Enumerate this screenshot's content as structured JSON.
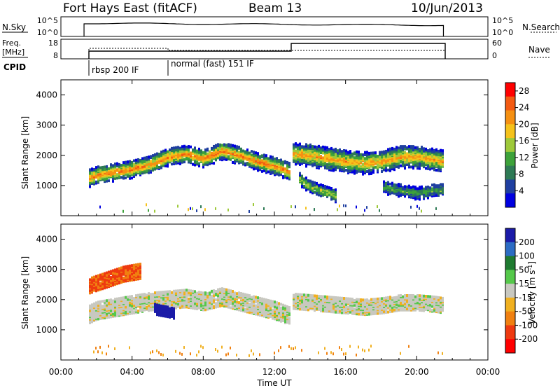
{
  "header": {
    "station": "Fort Hays East (fitACF)",
    "beam": "Beam 13",
    "date": "10/Jun/2013"
  },
  "panels": {
    "nsky": {
      "left_label": "N.Sky",
      "left_ticks": [
        "10^5",
        "10^0"
      ],
      "right_ticks": [
        "10^5",
        "10^0"
      ],
      "right_label": "N.Search"
    },
    "freq": {
      "left_label_1": "Freq.",
      "left_label_2": "[MHz]",
      "left_ticks": [
        "18",
        "8"
      ],
      "right_ticks": [
        "60",
        "0"
      ],
      "right_label": "Nave"
    },
    "cpid": {
      "label": "CPID",
      "modes": [
        "rbsp 200 IF",
        "normal (fast) 151 IF"
      ]
    }
  },
  "x_axis": {
    "label": "Time UT",
    "ticks": [
      "00:00",
      "04:00",
      "08:00",
      "12:00",
      "16:00",
      "20:00",
      "00:00"
    ]
  },
  "colors": {
    "power_scale": [
      "#0000e0",
      "#1f3fa0",
      "#2e7a55",
      "#3da23a",
      "#9ec93a",
      "#f5c21b",
      "#f59012",
      "#f35a12",
      "#ff0000"
    ],
    "velocity_scale": [
      "#1b1ba8",
      "#2c6cc4",
      "#1e7a30",
      "#55c84a",
      "#c8c8c0",
      "#f0b020",
      "#f08010",
      "#ee3a10",
      "#ff0000"
    ]
  },
  "chart_data": [
    {
      "type": "heatmap",
      "name": "power",
      "ylabel": "Slant Range [km]",
      "ylim": [
        0,
        4500
      ],
      "y_ticks": [
        1000,
        2000,
        3000,
        4000
      ],
      "xlim_hours": [
        0,
        24
      ],
      "colorbar": {
        "label": "Power [dB]",
        "ticks": [
          4,
          8,
          12,
          16,
          20,
          24,
          28
        ],
        "range": [
          0,
          30
        ]
      },
      "bands": [
        {
          "t": [
            1.3,
            2,
            3,
            4,
            5,
            6,
            7,
            8,
            9,
            10,
            11,
            12,
            12.9
          ],
          "center": [
            1250,
            1400,
            1500,
            1600,
            1750,
            2000,
            2100,
            1950,
            2200,
            2050,
            1850,
            1700,
            1500
          ],
          "width": 300,
          "peak": 24
        },
        {
          "t": [
            13,
            14,
            15,
            16,
            17,
            18,
            19,
            20,
            21,
            21.5
          ],
          "center": [
            2100,
            2050,
            1950,
            1850,
            1800,
            1850,
            2000,
            2000,
            1900,
            1850
          ],
          "width": 380,
          "peak": 22
        },
        {
          "t": [
            13.3,
            14,
            15,
            15.5
          ],
          "center": [
            1300,
            1000,
            800,
            700
          ],
          "width": 220,
          "peak": 16
        },
        {
          "t": [
            18,
            19,
            20,
            21,
            21.5
          ],
          "center": [
            1000,
            900,
            800,
            900,
            900
          ],
          "width": 220,
          "peak": 12
        }
      ]
    },
    {
      "type": "heatmap",
      "name": "velocity",
      "ylabel": "Slant Range [km]",
      "ylim": [
        0,
        4500
      ],
      "y_ticks": [
        1000,
        2000,
        3000,
        4000
      ],
      "xlim_hours": [
        0,
        24
      ],
      "colorbar": {
        "label": "Velocity [m s^-1]",
        "ticks": [
          200,
          100,
          50,
          15,
          -15,
          -50,
          -100,
          -200
        ],
        "range": [
          -250,
          250
        ]
      },
      "bands": [
        {
          "t": [
            1.3,
            2,
            3,
            4,
            5,
            6,
            7,
            8,
            9,
            10,
            11,
            12,
            12.9
          ],
          "center": [
            1500,
            1700,
            1800,
            1900,
            2000,
            2050,
            2100,
            2000,
            2150,
            2000,
            1850,
            1700,
            1500
          ],
          "width": 600,
          "v": 0
        },
        {
          "t": [
            13,
            14,
            15,
            16,
            17,
            18,
            19,
            20,
            21,
            21.5
          ],
          "center": [
            2000,
            1950,
            1900,
            1850,
            1800,
            1850,
            1950,
            1950,
            1900,
            1850
          ],
          "width": 500,
          "v": 0
        },
        {
          "t": [
            5.2,
            5.5,
            6,
            6.3
          ],
          "center": [
            1750,
            1700,
            1650,
            1600
          ],
          "width": 350,
          "v": 200
        },
        {
          "t": [
            1.5,
            2.5,
            3.5,
            4.5
          ],
          "center": [
            2500,
            2700,
            2900,
            3000
          ],
          "width": 500,
          "v": -80
        }
      ]
    }
  ]
}
